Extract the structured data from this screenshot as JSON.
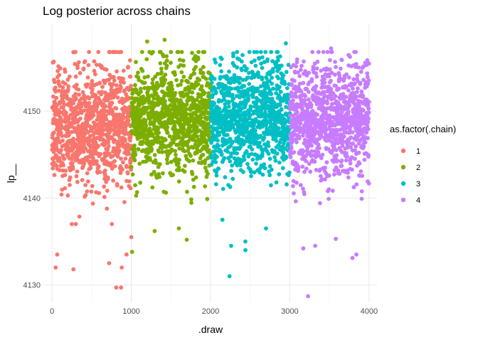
{
  "chart_data": {
    "type": "scatter",
    "title": "Log posterior across chains",
    "xlabel": ".draw",
    "ylabel": "lp__",
    "xlim": [
      -100,
      4100
    ],
    "ylim": [
      4128,
      4160
    ],
    "x_ticks": [
      0,
      1000,
      2000,
      3000,
      4000
    ],
    "x_tick_labels": [
      "0",
      "1000",
      "2000",
      "3000",
      "4000"
    ],
    "y_ticks": [
      4130,
      4140,
      4150
    ],
    "y_tick_labels": [
      "4130",
      "4140",
      "4150"
    ],
    "grid": true,
    "legend": {
      "title": "as.factor(.chain)",
      "position": "right",
      "entries": [
        "1",
        "2",
        "3",
        "4"
      ]
    },
    "series": [
      {
        "name": "1",
        "color": "#F8766D",
        "x_range": [
          1,
          1000
        ],
        "n": 1000,
        "center": 4148,
        "spread": 3.5,
        "outliers": [
          [
            65,
            4133.5
          ],
          [
            45,
            4132
          ],
          [
            270,
            4131.8
          ],
          [
            720,
            4132.5
          ],
          [
            810,
            4129.7
          ],
          [
            870,
            4129.7
          ],
          [
            880,
            4132
          ],
          [
            940,
            4133.5
          ],
          [
            300,
            4137
          ],
          [
            1000,
            4135.5
          ]
        ]
      },
      {
        "name": "2",
        "color": "#7CAE00",
        "x_range": [
          1001,
          2000
        ],
        "n": 1000,
        "center": 4149,
        "spread": 3.2,
        "outliers": [
          [
            1010,
            4133.8
          ],
          [
            1295,
            4136.2
          ],
          [
            1600,
            4136.5
          ],
          [
            1700,
            4135.2
          ],
          [
            1200,
            4158
          ],
          [
            1420,
            4158.2
          ]
        ]
      },
      {
        "name": "3",
        "color": "#00BFC4",
        "x_range": [
          2001,
          3000
        ],
        "n": 1000,
        "center": 4149.5,
        "spread": 3.2,
        "outliers": [
          [
            2240,
            4131
          ],
          [
            2260,
            4134.5
          ],
          [
            2440,
            4134
          ],
          [
            2440,
            4135
          ],
          [
            2700,
            4136.5
          ],
          [
            2950,
            4157.8
          ],
          [
            2150,
            4137.5
          ]
        ]
      },
      {
        "name": "4",
        "color": "#C77CFF",
        "x_range": [
          3001,
          4000
        ],
        "n": 1000,
        "center": 4149,
        "spread": 3.3,
        "outliers": [
          [
            3230,
            4128.7
          ],
          [
            3170,
            4134.2
          ],
          [
            3320,
            4134.5
          ],
          [
            3580,
            4135.3
          ],
          [
            3840,
            4133.5
          ],
          [
            3790,
            4133.1
          ],
          [
            3520,
            4157.2
          ]
        ]
      }
    ]
  }
}
